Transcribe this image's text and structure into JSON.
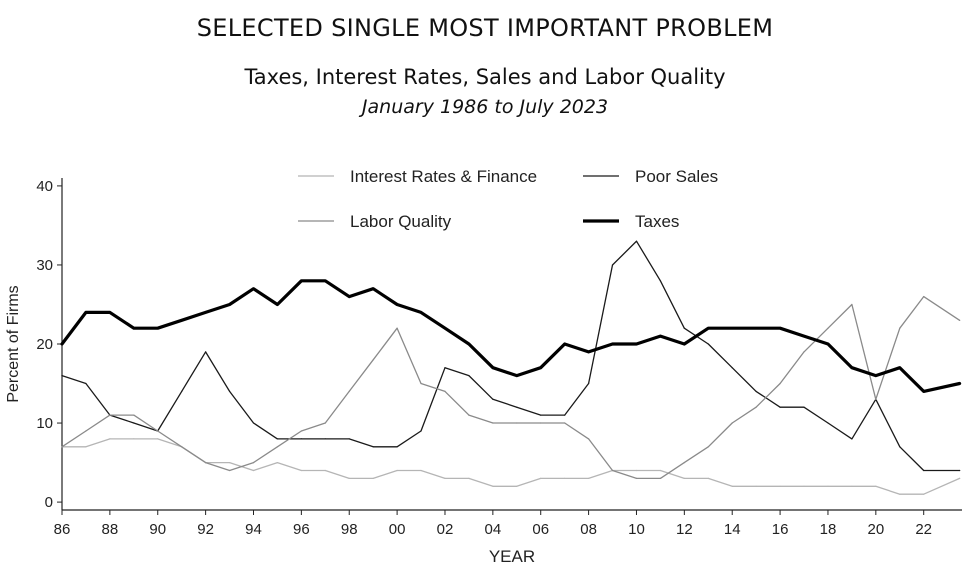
{
  "header": {
    "title": "SELECTED SINGLE MOST IMPORTANT PROBLEM",
    "subtitle": "Taxes, Interest Rates, Sales and Labor Quality",
    "period": "January 1986 to July 2023"
  },
  "chart_data": {
    "type": "line",
    "title": "SELECTED SINGLE MOST IMPORTANT PROBLEM",
    "subtitle": "Taxes, Interest Rates, Sales and Labor Quality",
    "xlabel": "YEAR",
    "ylabel": "Percent of Firms",
    "xlim": [
      1986,
      2023.6
    ],
    "ylim": [
      -1,
      41
    ],
    "yticks": [
      0,
      10,
      20,
      30,
      40
    ],
    "xticks": [
      1986,
      1988,
      1990,
      1992,
      1994,
      1996,
      1998,
      2000,
      2002,
      2004,
      2006,
      2008,
      2010,
      2012,
      2014,
      2016,
      2018,
      2020,
      2022
    ],
    "xtick_labels": [
      "86",
      "88",
      "90",
      "92",
      "94",
      "96",
      "98",
      "00",
      "02",
      "04",
      "06",
      "08",
      "10",
      "12",
      "14",
      "16",
      "18",
      "20",
      "22"
    ],
    "grid": false,
    "legend": [
      {
        "label": "Interest Rates & Finance",
        "color": "#b5b5b5",
        "width": 1.3
      },
      {
        "label": "Poor Sales",
        "color": "#1a1a1a",
        "width": 1.3
      },
      {
        "label": "Labor Quality",
        "color": "#8a8a8a",
        "width": 1.3
      },
      {
        "label": "Taxes",
        "color": "#000000",
        "width": 3.2
      }
    ],
    "series": [
      {
        "name": "Interest Rates & Finance",
        "x": [
          1986,
          1987,
          1988,
          1989,
          1990,
          1991,
          1992,
          1993,
          1994,
          1995,
          1996,
          1997,
          1998,
          1999,
          2000,
          2001,
          2002,
          2003,
          2004,
          2005,
          2006,
          2007,
          2008,
          2009,
          2010,
          2011,
          2012,
          2013,
          2014,
          2015,
          2016,
          2017,
          2018,
          2019,
          2020,
          2021,
          2022,
          2023.5
        ],
        "values": [
          7,
          7,
          8,
          8,
          8,
          7,
          5,
          5,
          4,
          5,
          4,
          4,
          3,
          3,
          4,
          4,
          3,
          3,
          2,
          2,
          3,
          3,
          3,
          4,
          4,
          4,
          3,
          3,
          2,
          2,
          2,
          2,
          2,
          2,
          2,
          1,
          1,
          3
        ]
      },
      {
        "name": "Poor Sales",
        "x": [
          1986,
          1987,
          1988,
          1989,
          1990,
          1991,
          1992,
          1993,
          1994,
          1995,
          1996,
          1997,
          1998,
          1999,
          2000,
          2001,
          2002,
          2003,
          2004,
          2005,
          2006,
          2007,
          2008,
          2009,
          2010,
          2011,
          2012,
          2013,
          2014,
          2015,
          2016,
          2017,
          2018,
          2019,
          2020,
          2021,
          2022,
          2023.5
        ],
        "values": [
          16,
          15,
          11,
          10,
          9,
          14,
          19,
          14,
          10,
          8,
          8,
          8,
          8,
          7,
          7,
          9,
          17,
          16,
          13,
          12,
          11,
          11,
          15,
          30,
          33,
          28,
          22,
          20,
          17,
          14,
          12,
          12,
          10,
          8,
          13,
          7,
          4,
          4
        ]
      },
      {
        "name": "Labor Quality",
        "x": [
          1986,
          1987,
          1988,
          1989,
          1990,
          1991,
          1992,
          1993,
          1994,
          1995,
          1996,
          1997,
          1998,
          1999,
          2000,
          2001,
          2002,
          2003,
          2004,
          2005,
          2006,
          2007,
          2008,
          2009,
          2010,
          2011,
          2012,
          2013,
          2014,
          2015,
          2016,
          2017,
          2018,
          2019,
          2020,
          2021,
          2022,
          2023.5
        ],
        "values": [
          7,
          9,
          11,
          11,
          9,
          7,
          5,
          4,
          5,
          7,
          9,
          10,
          14,
          18,
          22,
          15,
          14,
          11,
          10,
          10,
          10,
          10,
          8,
          4,
          3,
          3,
          5,
          7,
          10,
          12,
          15,
          19,
          22,
          25,
          13,
          22,
          26,
          23
        ]
      },
      {
        "name": "Taxes",
        "x": [
          1986,
          1987,
          1988,
          1989,
          1990,
          1991,
          1992,
          1993,
          1994,
          1995,
          1996,
          1997,
          1998,
          1999,
          2000,
          2001,
          2002,
          2003,
          2004,
          2005,
          2006,
          2007,
          2008,
          2009,
          2010,
          2011,
          2012,
          2013,
          2014,
          2015,
          2016,
          2017,
          2018,
          2019,
          2020,
          2021,
          2022,
          2023.5
        ],
        "values": [
          20,
          24,
          24,
          22,
          22,
          23,
          24,
          25,
          27,
          25,
          28,
          28,
          26,
          27,
          25,
          24,
          22,
          20,
          17,
          16,
          17,
          20,
          19,
          20,
          20,
          21,
          20,
          22,
          22,
          22,
          22,
          21,
          20,
          17,
          16,
          17,
          14,
          15
        ]
      }
    ]
  }
}
